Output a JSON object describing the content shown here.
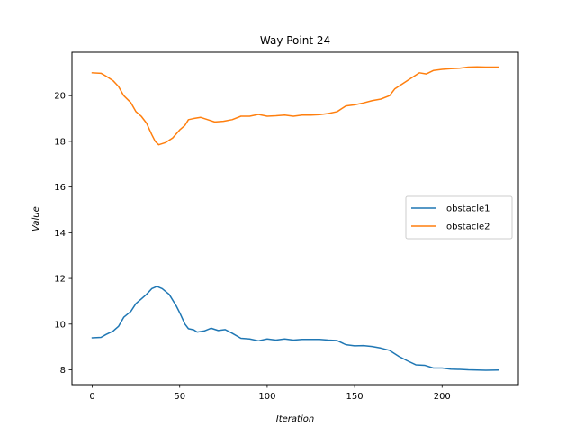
{
  "chart_data": {
    "type": "line",
    "title": "Way Point 24",
    "xlabel": "Iteration",
    "ylabel": "Value",
    "xlim": [
      -11.6,
      243.6
    ],
    "ylim": [
      7.35,
      21.9
    ],
    "xticks": [
      0,
      50,
      100,
      150,
      200
    ],
    "yticks": [
      8,
      10,
      12,
      14,
      16,
      18,
      20
    ],
    "grid": false,
    "legend_position": "center-right",
    "series": [
      {
        "name": "obstacle1",
        "color": "#1f77b4",
        "points": [
          [
            0,
            9.4
          ],
          [
            5,
            9.42
          ],
          [
            8,
            9.55
          ],
          [
            12,
            9.7
          ],
          [
            15,
            9.9
          ],
          [
            18,
            10.3
          ],
          [
            22,
            10.55
          ],
          [
            25,
            10.9
          ],
          [
            28,
            11.1
          ],
          [
            31,
            11.3
          ],
          [
            34,
            11.55
          ],
          [
            37,
            11.65
          ],
          [
            40,
            11.55
          ],
          [
            44,
            11.3
          ],
          [
            48,
            10.8
          ],
          [
            50,
            10.5
          ],
          [
            53,
            10.0
          ],
          [
            55,
            9.8
          ],
          [
            58,
            9.75
          ],
          [
            60,
            9.65
          ],
          [
            64,
            9.7
          ],
          [
            68,
            9.82
          ],
          [
            72,
            9.72
          ],
          [
            76,
            9.76
          ],
          [
            80,
            9.6
          ],
          [
            85,
            9.38
          ],
          [
            90,
            9.35
          ],
          [
            95,
            9.27
          ],
          [
            100,
            9.35
          ],
          [
            105,
            9.3
          ],
          [
            110,
            9.35
          ],
          [
            115,
            9.3
          ],
          [
            120,
            9.33
          ],
          [
            125,
            9.33
          ],
          [
            130,
            9.33
          ],
          [
            135,
            9.3
          ],
          [
            140,
            9.28
          ],
          [
            145,
            9.1
          ],
          [
            150,
            9.05
          ],
          [
            155,
            9.06
          ],
          [
            160,
            9.02
          ],
          [
            165,
            8.95
          ],
          [
            170,
            8.85
          ],
          [
            175,
            8.6
          ],
          [
            180,
            8.4
          ],
          [
            185,
            8.22
          ],
          [
            190,
            8.2
          ],
          [
            195,
            8.08
          ],
          [
            200,
            8.08
          ],
          [
            205,
            8.03
          ],
          [
            210,
            8.02
          ],
          [
            215,
            8.0
          ],
          [
            220,
            7.99
          ],
          [
            225,
            7.98
          ],
          [
            232,
            7.99
          ]
        ]
      },
      {
        "name": "obstacle2",
        "color": "#ff7f0e",
        "points": [
          [
            0,
            21.0
          ],
          [
            5,
            20.98
          ],
          [
            8,
            20.85
          ],
          [
            12,
            20.65
          ],
          [
            15,
            20.4
          ],
          [
            18,
            20.0
          ],
          [
            22,
            19.7
          ],
          [
            25,
            19.3
          ],
          [
            28,
            19.1
          ],
          [
            31,
            18.8
          ],
          [
            34,
            18.3
          ],
          [
            36,
            18.0
          ],
          [
            38,
            17.85
          ],
          [
            42,
            17.95
          ],
          [
            46,
            18.15
          ],
          [
            50,
            18.5
          ],
          [
            53,
            18.7
          ],
          [
            55,
            18.95
          ],
          [
            58,
            19.0
          ],
          [
            62,
            19.05
          ],
          [
            66,
            18.95
          ],
          [
            70,
            18.85
          ],
          [
            75,
            18.88
          ],
          [
            80,
            18.95
          ],
          [
            85,
            19.1
          ],
          [
            90,
            19.1
          ],
          [
            95,
            19.18
          ],
          [
            100,
            19.1
          ],
          [
            105,
            19.12
          ],
          [
            110,
            19.15
          ],
          [
            115,
            19.1
          ],
          [
            120,
            19.15
          ],
          [
            125,
            19.15
          ],
          [
            130,
            19.17
          ],
          [
            135,
            19.22
          ],
          [
            140,
            19.3
          ],
          [
            145,
            19.55
          ],
          [
            150,
            19.6
          ],
          [
            155,
            19.68
          ],
          [
            160,
            19.78
          ],
          [
            165,
            19.85
          ],
          [
            170,
            20.0
          ],
          [
            173,
            20.3
          ],
          [
            178,
            20.55
          ],
          [
            183,
            20.8
          ],
          [
            187,
            21.0
          ],
          [
            191,
            20.95
          ],
          [
            195,
            21.1
          ],
          [
            200,
            21.15
          ],
          [
            205,
            21.18
          ],
          [
            210,
            21.2
          ],
          [
            215,
            21.25
          ],
          [
            220,
            21.26
          ],
          [
            225,
            21.25
          ],
          [
            232,
            21.25
          ]
        ]
      }
    ]
  }
}
